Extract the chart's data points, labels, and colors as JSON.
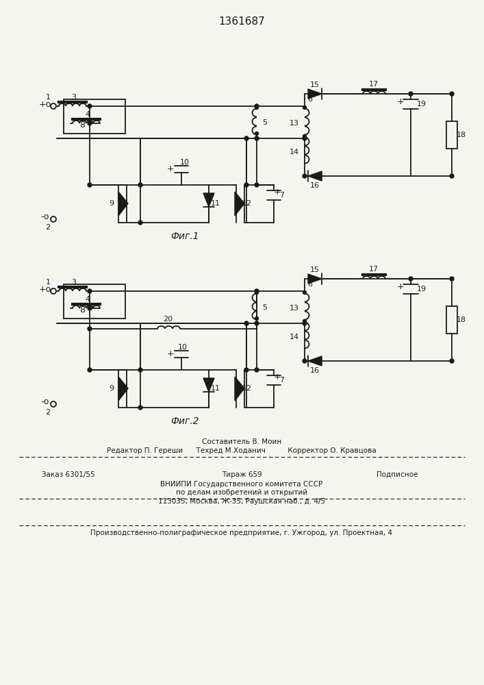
{
  "title": "1361687",
  "fig1_label": "Фиг.1",
  "fig2_label": "Фиг.2",
  "bg_color": "#f5f5f0",
  "black": "#1a1a1a"
}
